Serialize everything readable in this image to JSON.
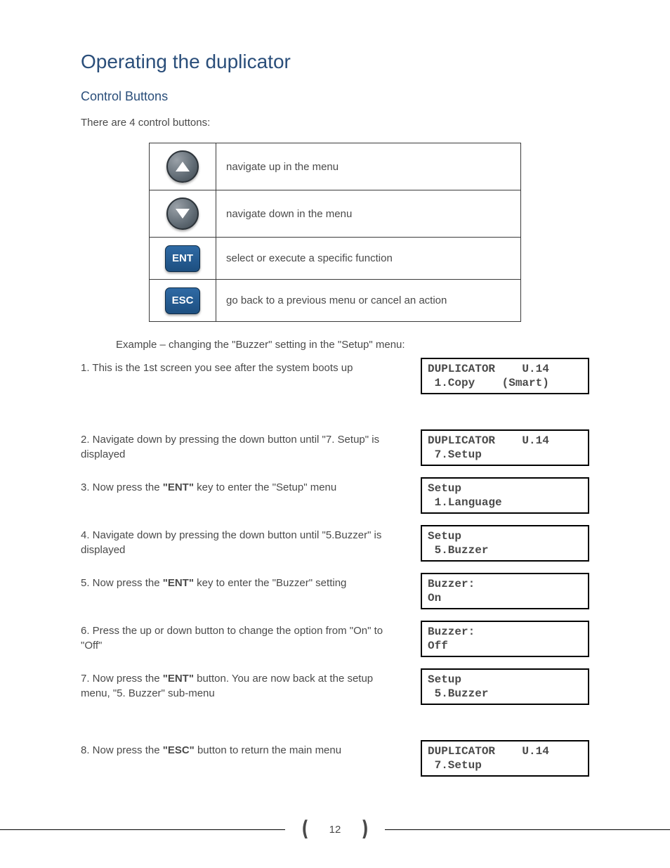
{
  "headings": {
    "main": "Operating the duplicator",
    "sub": "Control Buttons"
  },
  "intro": "There are 4 control buttons:",
  "button_table": {
    "rows": [
      {
        "icon": "up",
        "text": "navigate up in the menu"
      },
      {
        "icon": "down",
        "text": "navigate down in the menu"
      },
      {
        "icon": "ent",
        "ent_label": "ENT",
        "text": "select or execute a specific function"
      },
      {
        "icon": "esc",
        "esc_label": "ESC",
        "text": "go back to a previous menu or cancel an action"
      }
    ]
  },
  "example_intro_parts": {
    "prefix": "Example – changing the",
    "q1": "\"Buzzer\" setting in",
    "q2": "the \"Setup\" menu:"
  },
  "steps": [
    {
      "html": "1. This is the 1st screen you see after the system boots up",
      "lcd_parts": {
        "l1_left": "DUPLICATOR",
        "l1_right": "U.14",
        "l2_left": " 1.Copy",
        "l2_right": "(Smart)"
      }
    },
    {
      "html": "2. Navigate down by pressing the down button until \"7. Setup\" is displayed",
      "lcd_parts": {
        "l1_left": "DUPLICATOR",
        "l1_right": "U.14",
        "l2": " 7.Setup"
      }
    },
    {
      "html": "3. Now press the <b>\"ENT\"</b> key to enter the \"Setup\" menu",
      "lcd_lines": [
        "Setup",
        " 1.Language"
      ]
    },
    {
      "html": "4. Navigate down by pressing the down button until \"5.Buzzer\" is displayed",
      "lcd_lines": [
        "Setup",
        " 5.Buzzer"
      ]
    },
    {
      "html": "5. Now press the <b>\"ENT\"</b> key to enter the \"Buzzer\" setting",
      "lcd_lines": [
        "Buzzer:",
        "On"
      ]
    },
    {
      "html": "6. Press the up or down button to change the option from \"On\" to \"Off\"",
      "lcd_lines": [
        "Buzzer:",
        "Off"
      ]
    },
    {
      "html": "7. Now press the <b>\"ENT\"</b> button. You are now back at the setup menu, \"5. Buzzer\" sub-menu",
      "lcd_lines": [
        "Setup",
        " 5.Buzzer"
      ]
    },
    {
      "html": "8. Now press the <b>\"ESC\"</b> button to return the main menu",
      "lcd_parts": {
        "l1_left": "DUPLICATOR",
        "l1_right": "U.14",
        "l2": " 7.Setup"
      }
    }
  ],
  "page_number": "12"
}
